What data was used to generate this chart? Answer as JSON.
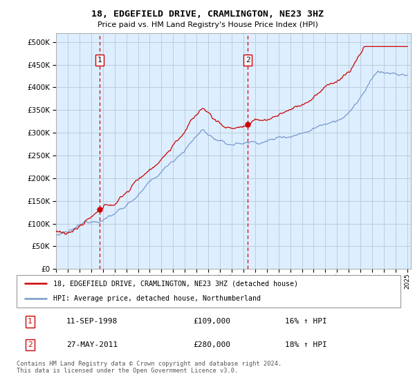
{
  "title": "18, EDGEFIELD DRIVE, CRAMLINGTON, NE23 3HZ",
  "subtitle": "Price paid vs. HM Land Registry's House Price Index (HPI)",
  "red_label": "18, EDGEFIELD DRIVE, CRAMLINGTON, NE23 3HZ (detached house)",
  "blue_label": "HPI: Average price, detached house, Northumberland",
  "sale1_date": "11-SEP-1998",
  "sale1_price": 109000,
  "sale1_hpi": "16% ↑ HPI",
  "sale2_date": "27-MAY-2011",
  "sale2_price": 280000,
  "sale2_hpi": "18% ↑ HPI",
  "footnote": "Contains HM Land Registry data © Crown copyright and database right 2024.\nThis data is licensed under the Open Government Licence v3.0.",
  "ylim_min": 0,
  "ylim_max": 520000,
  "chart_bg": "#ddeeff",
  "plot_bg": "#ffffff",
  "grid_color": "#bbccdd",
  "red_color": "#cc0000",
  "blue_color": "#7799cc",
  "vline_color": "#cc0000",
  "sale1_x": 1998.71,
  "sale2_x": 2011.37
}
